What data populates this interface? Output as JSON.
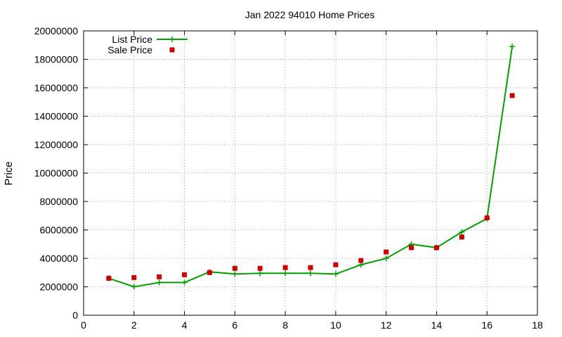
{
  "chart_data": {
    "type": "line",
    "title": "Jan 2022 94010 Home Prices",
    "xlabel": "",
    "ylabel": "Price",
    "xlim": [
      0,
      18
    ],
    "ylim": [
      0,
      20000000
    ],
    "x_ticks": [
      0,
      2,
      4,
      6,
      8,
      10,
      12,
      14,
      16,
      18
    ],
    "y_ticks": [
      0,
      2000000,
      4000000,
      6000000,
      8000000,
      10000000,
      12000000,
      14000000,
      16000000,
      18000000,
      20000000
    ],
    "grid": true,
    "legend_position": "top-left",
    "series": [
      {
        "name": "List Price",
        "style": "line with plus markers",
        "color": "#00a000",
        "points": [
          [
            1,
            2600000
          ],
          [
            2,
            2000000
          ],
          [
            3,
            2300000
          ],
          [
            4,
            2300000
          ],
          [
            5,
            3050000
          ],
          [
            6,
            2900000
          ],
          [
            7,
            2950000
          ],
          [
            8,
            2950000
          ],
          [
            9,
            2950000
          ],
          [
            10,
            2900000
          ],
          [
            11,
            3550000
          ],
          [
            12,
            4000000
          ],
          [
            13,
            5000000
          ],
          [
            14,
            4750000
          ],
          [
            15,
            5850000
          ],
          [
            16,
            6800000
          ],
          [
            17,
            18900000
          ]
        ]
      },
      {
        "name": "Sale Price",
        "style": "square markers",
        "color": "#cc0000",
        "points": [
          [
            1,
            2600000
          ],
          [
            2,
            2650000
          ],
          [
            3,
            2700000
          ],
          [
            4,
            2850000
          ],
          [
            5,
            3000000
          ],
          [
            6,
            3300000
          ],
          [
            7,
            3300000
          ],
          [
            8,
            3350000
          ],
          [
            9,
            3350000
          ],
          [
            10,
            3550000
          ],
          [
            11,
            3850000
          ],
          [
            12,
            4450000
          ],
          [
            13,
            4750000
          ],
          [
            14,
            4750000
          ],
          [
            15,
            5500000
          ],
          [
            16,
            6850000
          ],
          [
            17,
            15450000
          ]
        ]
      }
    ]
  }
}
